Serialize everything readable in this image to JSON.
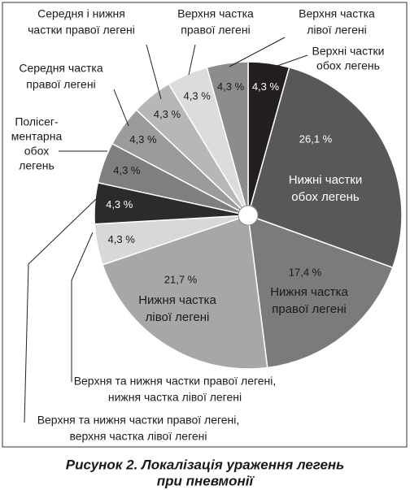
{
  "chart_data": {
    "type": "pie",
    "labels": [
      [
        "Верхні частки",
        "обох легень"
      ],
      [
        "Нижні частки",
        "обох легень"
      ],
      [
        "Нижня частка",
        "правої легені"
      ],
      [
        "Нижня частка",
        "лівої легені"
      ],
      [
        "Верхня та нижня частки правої легені,",
        "нижня частка лівої легені"
      ],
      [
        "Верхня та нижня частки правої легені,",
        "верхня частка лівої легені"
      ],
      [
        "Полісег-",
        "ментарна",
        "обох",
        "легень"
      ],
      [
        "Середня частка",
        "правої легені"
      ],
      [
        "Середня і нижня",
        "частки правої легені"
      ],
      [
        "Верхня частка",
        "правої легені"
      ],
      [
        "Верхня частка",
        "лівої легені"
      ]
    ],
    "values": [
      4.3,
      26.1,
      17.4,
      21.7,
      4.3,
      4.3,
      4.3,
      4.3,
      4.3,
      4.3,
      4.3
    ],
    "value_labels": [
      "4,3 %",
      "26,1 %",
      "17,4 %",
      "21,7 %",
      "4,3 %",
      "4,3 %",
      "4,3 %",
      "4,3 %",
      "4,3 %",
      "4,3 %",
      "4,3 %"
    ],
    "colors": [
      "#231f20",
      "#58585a",
      "#7b7b7d",
      "#a7a7a9",
      "#d8d8d9",
      "#2b2b2c",
      "#7f7f81",
      "#9b9b9d",
      "#b7b7b9",
      "#dcdcdd",
      "#8c8c8e"
    ],
    "caption": [
      "Рисунок 2.  Локалізація ураження легень",
      "при пневмонії"
    ]
  }
}
